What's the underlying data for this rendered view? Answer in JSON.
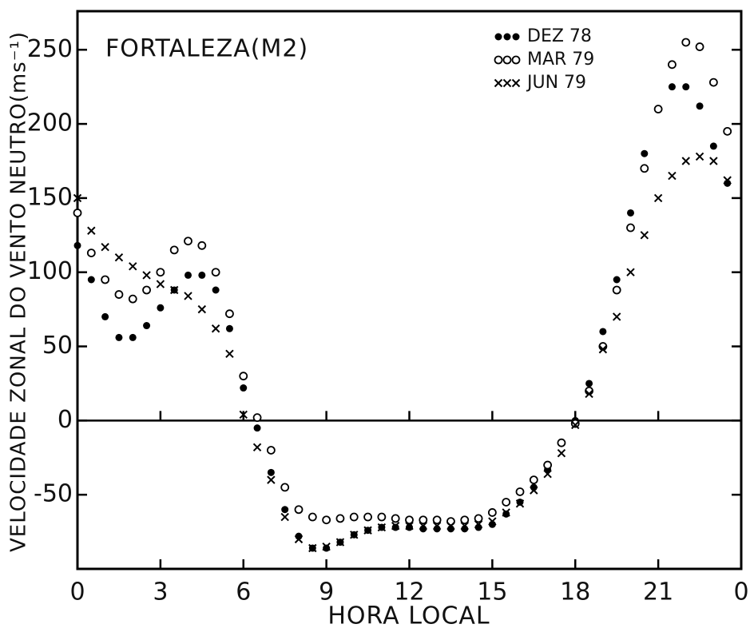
{
  "chart_data": {
    "type": "scatter",
    "title": "FORTALEZA(M2)",
    "x_label": "HORA LOCAL",
    "y_label": "VELOCIDADE ZONAL DO VENTO NEUTRO(ms⁻¹)",
    "x": [
      0,
      0.5,
      1,
      1.5,
      2,
      2.5,
      3,
      3.5,
      4,
      4.5,
      5,
      5.5,
      6,
      6.5,
      7,
      7.5,
      8,
      8.5,
      9,
      9.5,
      10,
      10.5,
      11,
      11.5,
      12,
      12.5,
      13,
      13.5,
      14,
      14.5,
      15,
      15.5,
      16,
      16.5,
      17,
      17.5,
      18,
      18.5,
      19,
      19.5,
      20,
      20.5,
      21,
      21.5,
      22,
      22.5,
      23,
      23.5
    ],
    "series": [
      {
        "name": "DEZ 78",
        "color": "#000000",
        "marker": "filled",
        "values": [
          118,
          95,
          70,
          56,
          56,
          64,
          76,
          88,
          98,
          98,
          88,
          62,
          22,
          -5,
          -35,
          -60,
          -78,
          -86,
          -86,
          -82,
          -77,
          -74,
          -72,
          -72,
          -72,
          -73,
          -73,
          -73,
          -73,
          -72,
          -70,
          -63,
          -55,
          -45,
          -33,
          -15,
          0,
          25,
          60,
          95,
          140,
          180,
          210,
          225,
          225,
          212,
          185,
          160
        ]
      },
      {
        "name": "MAR 79",
        "color": "#000000",
        "marker": "open",
        "values": [
          140,
          113,
          95,
          85,
          82,
          88,
          100,
          115,
          121,
          118,
          100,
          72,
          30,
          2,
          -20,
          -45,
          -60,
          -65,
          -67,
          -66,
          -65,
          -65,
          -65,
          -66,
          -67,
          -67,
          -67,
          -68,
          -67,
          -66,
          -62,
          -55,
          -48,
          -40,
          -30,
          -15,
          -2,
          20,
          50,
          88,
          130,
          170,
          210,
          240,
          255,
          252,
          228,
          195
        ]
      },
      {
        "name": "JUN 79",
        "color": "#000000",
        "marker": "x",
        "values": [
          150,
          128,
          117,
          110,
          104,
          98,
          92,
          88,
          84,
          75,
          62,
          45,
          4,
          -18,
          -40,
          -65,
          -80,
          -86,
          -85,
          -82,
          -77,
          -74,
          -72,
          -71,
          -71,
          -71,
          -71,
          -71,
          -71,
          -70,
          -68,
          -62,
          -56,
          -47,
          -36,
          -22,
          -3,
          18,
          48,
          70,
          100,
          125,
          150,
          165,
          175,
          178,
          175,
          162
        ]
      }
    ],
    "xlim": [
      0,
      24
    ],
    "xticks": [
      0,
      3,
      6,
      9,
      12,
      15,
      18,
      21,
      {
        "value": 24,
        "label": "0"
      }
    ],
    "ylim": [
      -100,
      276
    ],
    "yticks": [
      -50,
      0,
      50,
      100,
      150,
      200,
      250
    ],
    "grid": false
  }
}
